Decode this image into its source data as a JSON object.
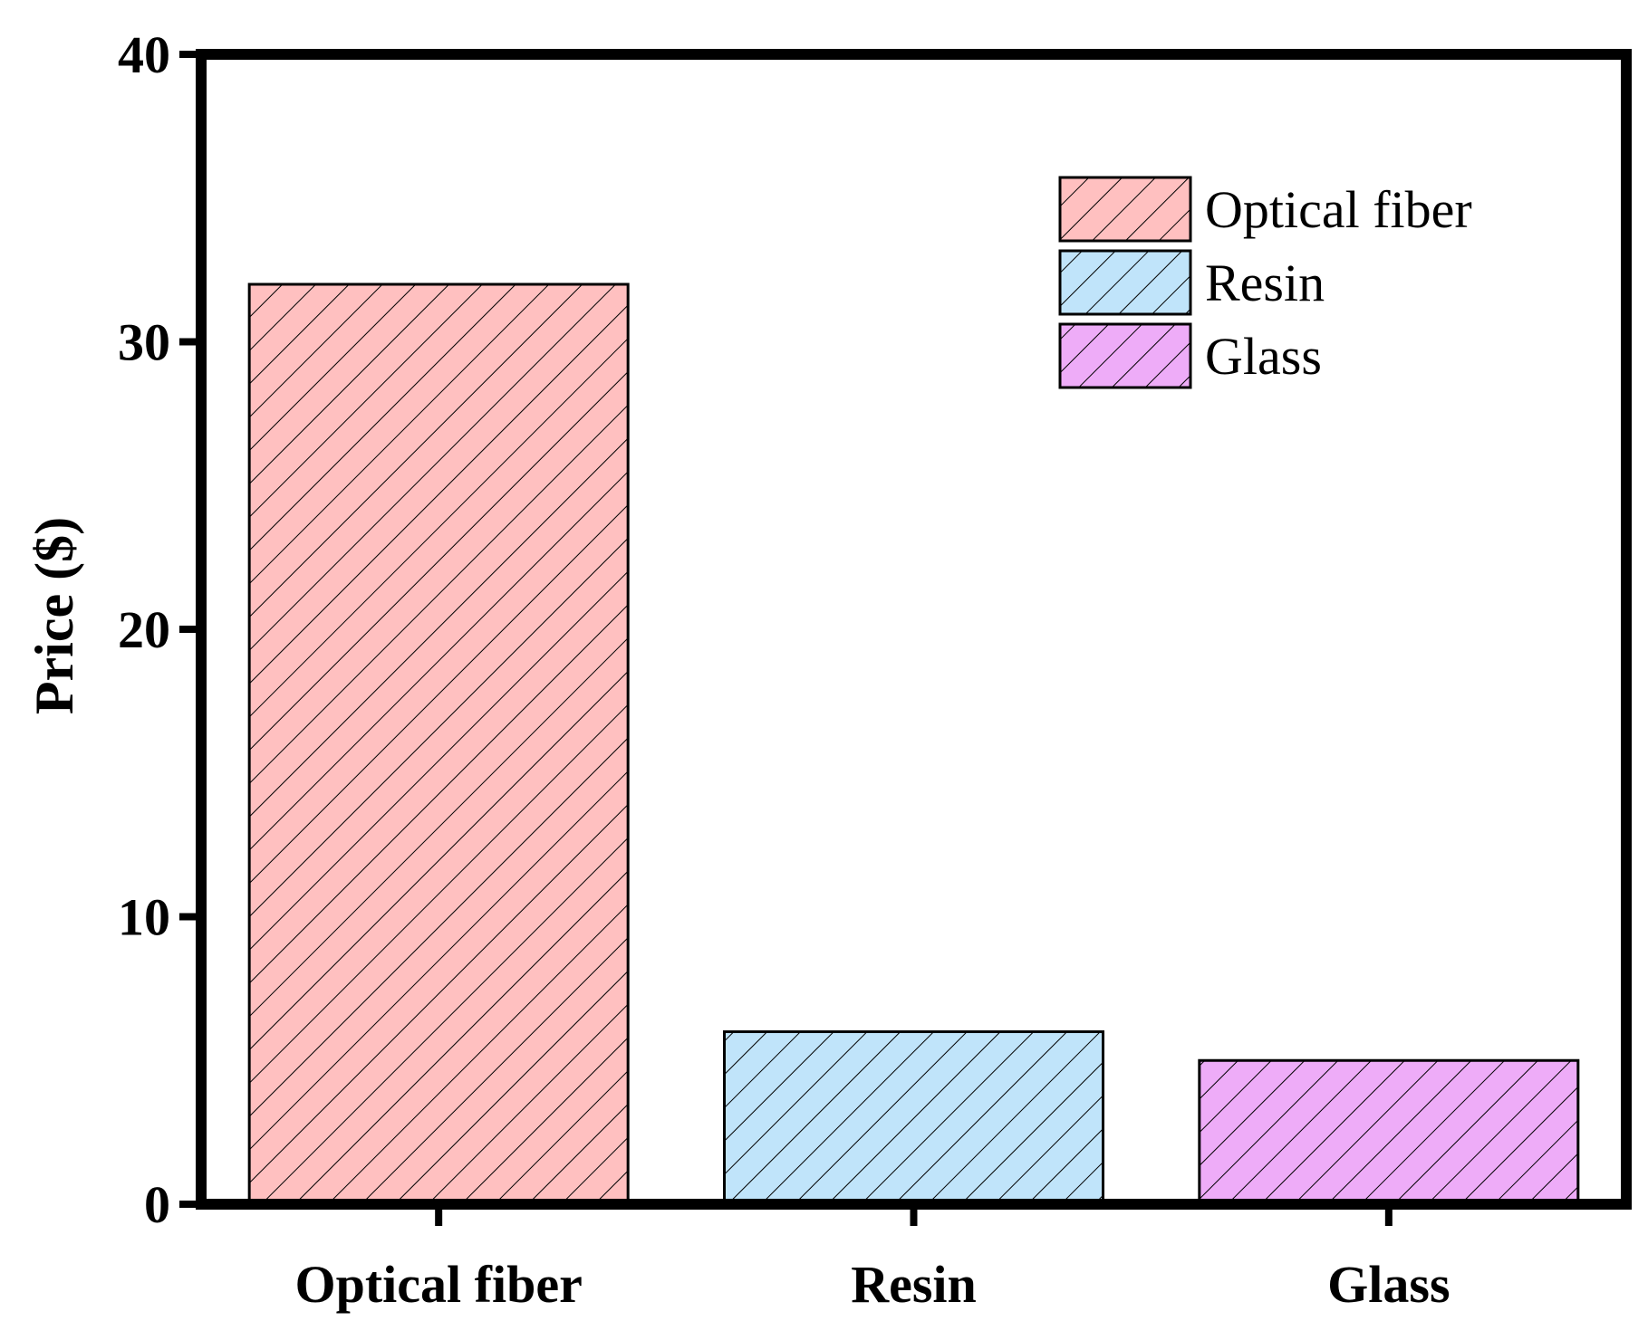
{
  "chart_data": {
    "type": "bar",
    "categories": [
      "Optical fiber",
      "Resin",
      "Glass"
    ],
    "values": [
      32,
      6,
      5
    ],
    "xlabel": "",
    "ylabel": "Price ($)",
    "ylim": [
      0,
      40
    ],
    "yticks": [
      "0",
      "10",
      "20",
      "30",
      "40"
    ],
    "grid": false,
    "legend": {
      "placement": "top-right",
      "entries": [
        "Optical fiber",
        "Resin",
        "Glass"
      ]
    },
    "colors": [
      "#ffc0c0",
      "#c0e4fa",
      "#eeacf8"
    ],
    "hatch": "diagonal"
  }
}
